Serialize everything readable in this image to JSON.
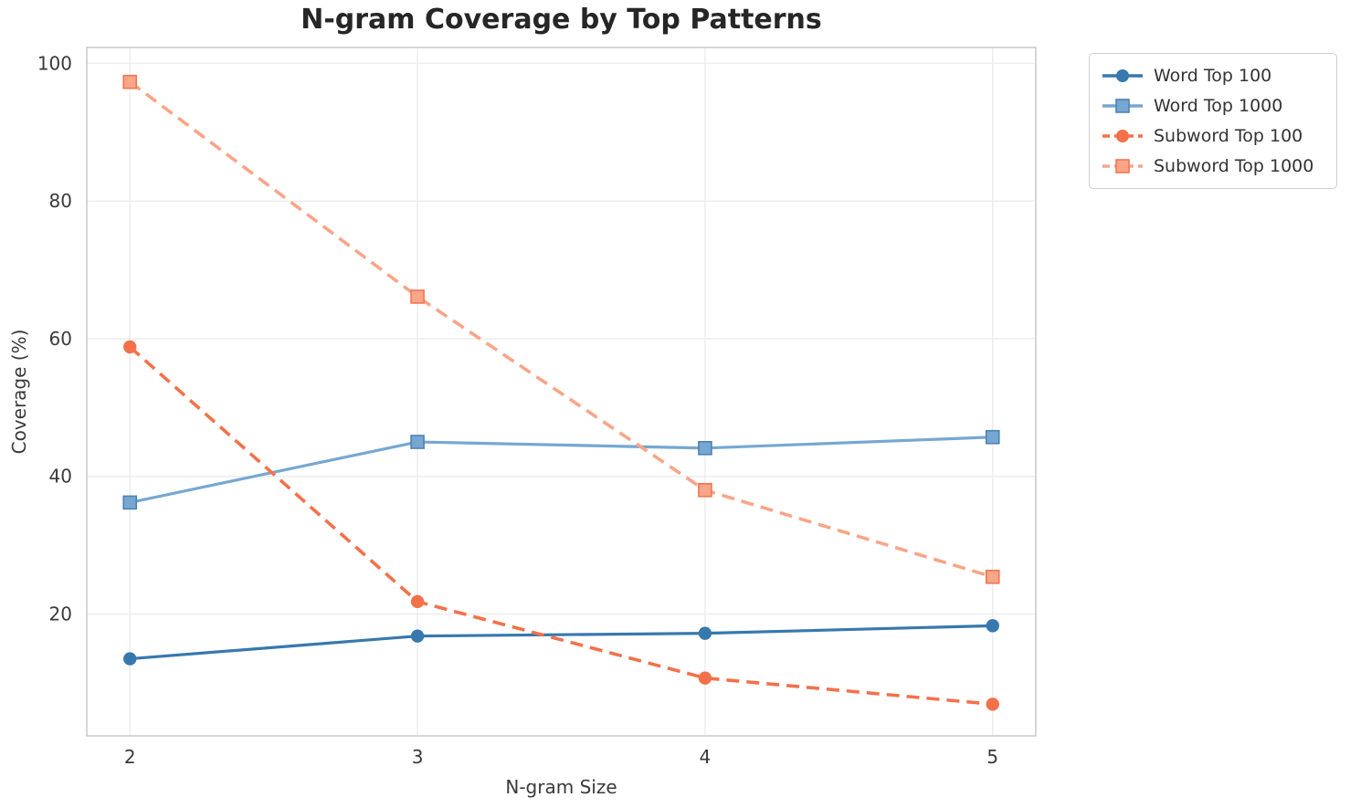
{
  "title": "N-gram Coverage by Top Patterns",
  "axes": {
    "xlabel": "N-gram Size",
    "ylabel": "Coverage (%)",
    "x_ticks": [
      "2",
      "3",
      "4",
      "5"
    ],
    "y_ticks": [
      "20",
      "40",
      "60",
      "80",
      "100"
    ]
  },
  "palette": {
    "background": "#ffffff",
    "grid": "#ececec",
    "spine": "#cccccc",
    "tick_text": "#3a3a3a",
    "title_text": "#262626"
  },
  "chart_data": {
    "type": "line",
    "title": "N-gram Coverage by Top Patterns",
    "xlabel": "N-gram Size",
    "ylabel": "Coverage (%)",
    "x": [
      2,
      3,
      4,
      5
    ],
    "series": [
      {
        "name": "Word Top 100",
        "values": [
          13.5,
          16.8,
          17.2,
          18.3
        ],
        "color": "#3778ae",
        "marker": "circle",
        "style": "solid",
        "marker_edge": "#3778ae"
      },
      {
        "name": "Word Top 1000",
        "values": [
          36.2,
          45.0,
          44.1,
          45.7
        ],
        "color": "#76a7d2",
        "marker": "square",
        "style": "solid",
        "marker_edge": "#4d82b4"
      },
      {
        "name": "Subword Top 100",
        "values": [
          58.8,
          21.8,
          10.7,
          6.9
        ],
        "color": "#f3714a",
        "marker": "circle",
        "style": "dashed",
        "marker_edge": "#f3714a"
      },
      {
        "name": "Subword Top 1000",
        "values": [
          97.3,
          66.1,
          38.0,
          25.4
        ],
        "color": "#f8a588",
        "marker": "square",
        "style": "dashed",
        "marker_edge": "#f2764f"
      }
    ],
    "xlim": [
      1.85,
      5.15
    ],
    "ylim": [
      2.3,
      102.3
    ],
    "grid": true,
    "legend_position": "outside-upper-right"
  }
}
